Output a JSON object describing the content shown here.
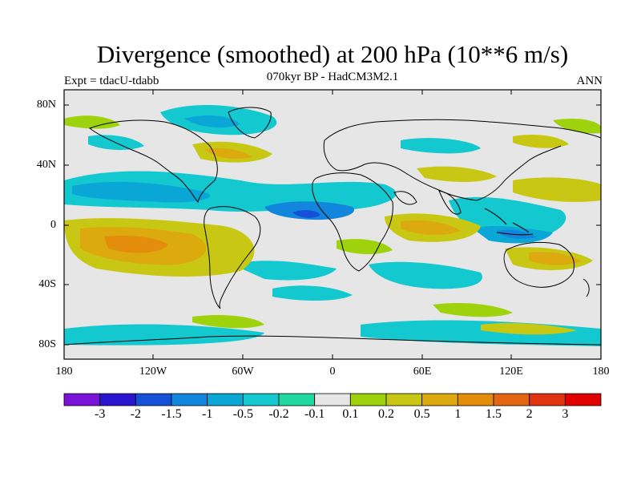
{
  "title": "Divergence (smoothed) at 200 hPa (10**6 m/s)",
  "subtitle": "070kyr BP - HadCM3M2.1",
  "experiment": "Expt = tdacU-tdabb",
  "season": "ANN",
  "y_axis_labels": [
    "80N",
    "40N",
    "0",
    "40S",
    "80S"
  ],
  "x_axis_labels": [
    "180",
    "120W",
    "60W",
    "0",
    "60E",
    "120E",
    "180"
  ],
  "colorbar": {
    "labels": [
      "-3",
      "-2",
      "-1.5",
      "-1",
      "-0.5",
      "-0.2",
      "-0.1",
      "0.1",
      "0.2",
      "0.5",
      "1",
      "1.5",
      "2",
      "3"
    ],
    "colors": [
      "#7a12d8",
      "#2a14d0",
      "#1450d8",
      "#1186dc",
      "#0aa6d6",
      "#14c8d0",
      "#20d8a0",
      "#e6e6e6",
      "#9ed20c",
      "#c8c814",
      "#dcaa0e",
      "#e48c0c",
      "#e46610",
      "#e03410",
      "#e00000"
    ]
  }
}
